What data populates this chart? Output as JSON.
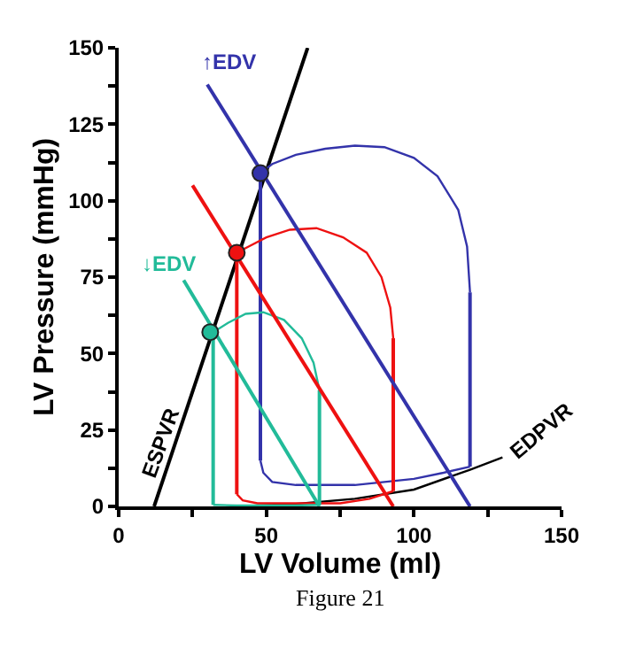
{
  "chart_data": {
    "type": "line",
    "xlabel": "LV Volume (ml)",
    "ylabel": "LV Pressure (mmHg)",
    "xlim": [
      0,
      150
    ],
    "ylim": [
      0,
      150
    ],
    "xticks": [
      0,
      {
        "value": 25,
        "label": null
      },
      50,
      {
        "value": 75,
        "label": null
      },
      100,
      {
        "value": 125,
        "label": null
      },
      150
    ],
    "yticks": [
      0,
      {
        "value": 12.5,
        "label": null
      },
      25,
      {
        "value": 37.5,
        "label": null
      },
      50,
      {
        "value": 62.5,
        "label": null
      },
      75,
      {
        "value": 87.5,
        "label": null
      },
      100,
      {
        "value": 112.5,
        "label": null
      },
      125,
      {
        "value": 137.5,
        "label": null
      },
      150
    ],
    "legend": false,
    "marker": "none",
    "line_style": "solid",
    "series": [
      {
        "color": "#000000",
        "x": [
          12,
          64
        ],
        "values": [
          0,
          150
        ]
      },
      {
        "color": "#000000",
        "x": [
          40,
          60,
          80,
          100,
          119,
          130
        ],
        "values": [
          0,
          0.8,
          2.5,
          5.5,
          12,
          16
        ]
      },
      {
        "color": "#3333aa",
        "x": [
          119,
          119
        ],
        "values": [
          13,
          70
        ]
      },
      {
        "color": "#3333aa",
        "x": [
          48,
          52,
          60,
          70,
          80,
          90,
          100,
          108,
          115,
          118,
          119
        ],
        "values": [
          109,
          112,
          115,
          117,
          118,
          117.5,
          114,
          108,
          97,
          85,
          70
        ]
      },
      {
        "color": "#3333aa",
        "x": [
          48,
          48
        ],
        "values": [
          109,
          15
        ]
      },
      {
        "color": "#3333aa",
        "x": [
          48,
          49,
          52,
          60,
          80,
          100,
          110,
          119
        ],
        "values": [
          15,
          11,
          8,
          7,
          7,
          9,
          11,
          13
        ]
      },
      {
        "color": "#ee1111",
        "x": [
          93,
          93
        ],
        "values": [
          5,
          55
        ]
      },
      {
        "color": "#ee1111",
        "x": [
          40,
          44,
          50,
          58,
          67,
          76,
          84,
          89,
          92,
          93
        ],
        "values": [
          83,
          85,
          88,
          90.5,
          91,
          88,
          83,
          75,
          65,
          55
        ]
      },
      {
        "color": "#ee1111",
        "x": [
          40,
          40
        ],
        "values": [
          83,
          4
        ]
      },
      {
        "color": "#ee1111",
        "x": [
          40,
          42,
          47,
          60,
          75,
          85,
          93
        ],
        "values": [
          4,
          2,
          1,
          1,
          1,
          2.5,
          5
        ]
      },
      {
        "color": "#22bb99",
        "x": [
          68,
          68
        ],
        "values": [
          0.5,
          38
        ]
      },
      {
        "color": "#22bb99",
        "x": [
          32,
          37,
          43,
          49,
          56,
          62,
          66,
          68
        ],
        "values": [
          57,
          60,
          63,
          63.5,
          61,
          55,
          47,
          38
        ]
      },
      {
        "color": "#22bb99",
        "x": [
          32,
          32
        ],
        "values": [
          57,
          0.5
        ]
      },
      {
        "color": "#22bb99",
        "x": [
          32,
          40,
          60,
          68
        ],
        "values": [
          0.5,
          0.3,
          0.3,
          0.5
        ]
      },
      {
        "color": "#3333aa",
        "x": [
          30,
          119
        ],
        "values": [
          138,
          0
        ]
      },
      {
        "color": "#ee1111",
        "x": [
          25,
          93
        ],
        "values": [
          105,
          0
        ]
      },
      {
        "color": "#22bb99",
        "x": [
          22,
          68
        ],
        "values": [
          74,
          0
        ]
      },
      {
        "type": "scatter",
        "marker": "circle",
        "color": "#3333aa",
        "x": [
          48
        ],
        "values": [
          109
        ]
      },
      {
        "type": "scatter",
        "marker": "circle",
        "color": "#ee1111",
        "x": [
          40
        ],
        "values": [
          83
        ]
      },
      {
        "type": "scatter",
        "marker": "circle",
        "color": "#22bb99",
        "x": [
          31
        ],
        "values": [
          57
        ]
      }
    ],
    "annotations": [
      "↑EDV",
      "↓EDV",
      "ESPVR",
      "EDPVR",
      "Figure 21"
    ]
  }
}
